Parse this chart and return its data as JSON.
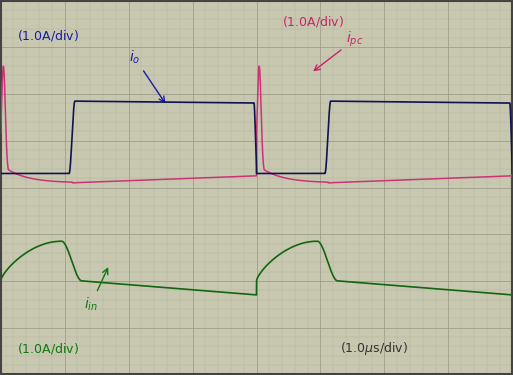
{
  "background_color": "#c8c8b0",
  "grid_color": "#999988",
  "fig_width": 5.13,
  "fig_height": 3.75,
  "dpi": 100,
  "xlim": [
    0,
    8
  ],
  "ylim": [
    0,
    8
  ],
  "border_color": "#444444",
  "color_io": "#111155",
  "color_ipc": "#cc3377",
  "color_iin": "#116611",
  "annot_io": "#1a1aaa",
  "annot_ipc": "#cc2266",
  "annot_iin": "#117711",
  "annot_time": "#333333"
}
